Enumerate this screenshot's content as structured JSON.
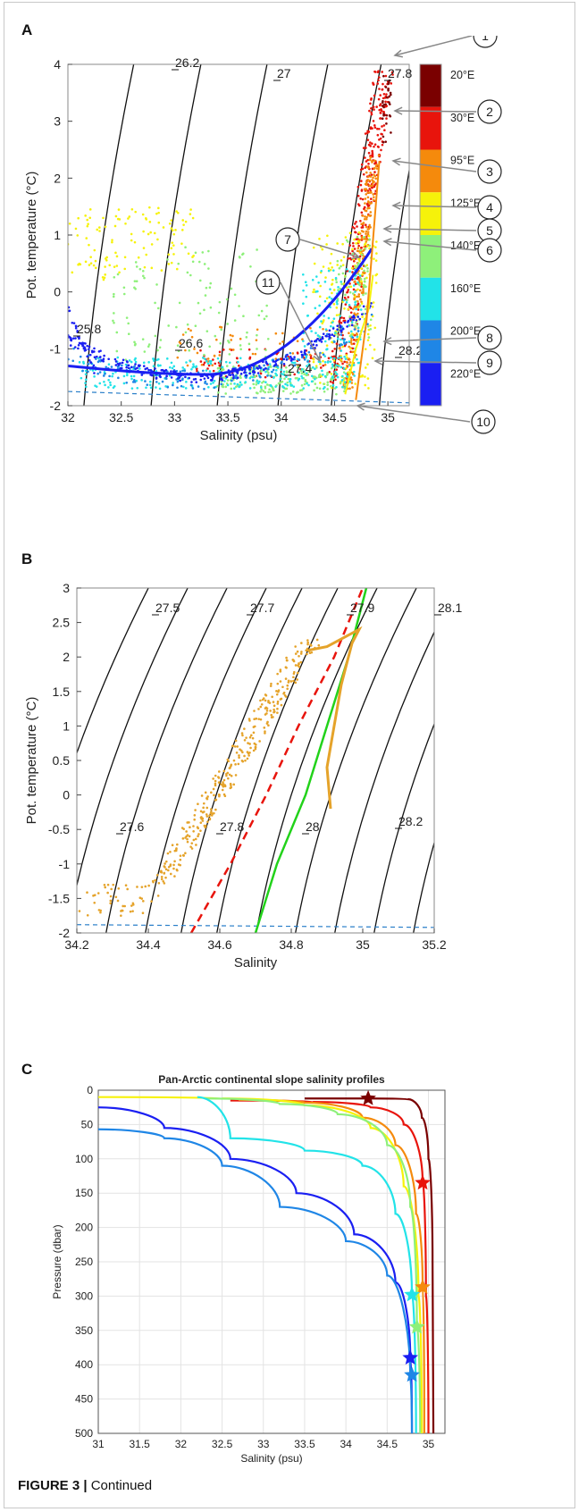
{
  "panelA": {
    "letter": "A",
    "chart_data": {
      "type": "scatter",
      "xlabel": "Salinity (psu)",
      "ylabel": "Pot. temperature (°C)",
      "xlim": [
        32,
        35.2
      ],
      "ylim": [
        -2,
        4
      ],
      "xticks": [
        "32",
        "32.5",
        "33",
        "33.5",
        "34",
        "34.5",
        "35"
      ],
      "yticks": [
        "-2",
        "-1",
        "0",
        "1",
        "2",
        "3",
        "4"
      ],
      "isopycnal_labels": [
        "26.2",
        "27",
        "27.8",
        "25.8",
        "26.6",
        "27.4",
        "28.2"
      ],
      "freezing_line_temp": -1.9,
      "colorbar": [
        {
          "label": "20°E",
          "color": "#7a0000"
        },
        {
          "label": "30°E",
          "color": "#e8140c"
        },
        {
          "label": "95°E",
          "color": "#f58a0c"
        },
        {
          "label": "125°E",
          "color": "#f6f20a"
        },
        {
          "label": "140°E",
          "color": "#8ef07a"
        },
        {
          "label": "160°E",
          "color": "#22e3e8"
        },
        {
          "label": "200°E",
          "color": "#1f86e6"
        },
        {
          "label": "220°E",
          "color": "#1a1ff2"
        }
      ],
      "markers": [
        "1",
        "2",
        "3",
        "4",
        "5",
        "6",
        "7",
        "8",
        "9",
        "10",
        "11"
      ]
    }
  },
  "panelB": {
    "letter": "B",
    "chart_data": {
      "type": "scatter",
      "xlabel": "Salinity",
      "ylabel": "Pot. temperature (°C)",
      "xlim": [
        34.2,
        35.2
      ],
      "ylim": [
        -2,
        3
      ],
      "xticks": [
        "34.2",
        "34.4",
        "34.6",
        "34.8",
        "35",
        "35.2"
      ],
      "yticks": [
        "-2",
        "-1.5",
        "-1",
        "-0.5",
        "0",
        "0.5",
        "1",
        "1.5",
        "2",
        "2.5",
        "3"
      ],
      "isopycnal_labels": [
        "27.5",
        "27.7",
        "27.9",
        "28.1",
        "27.6",
        "27.8",
        "28",
        "28.2"
      ],
      "freezing_line_temp": -1.9,
      "green_line": [
        [
          34.7,
          -2
        ],
        [
          34.76,
          -1
        ],
        [
          34.84,
          0
        ],
        [
          34.9,
          1
        ],
        [
          34.96,
          2
        ],
        [
          35.01,
          3
        ]
      ],
      "red_dashed_line": [
        [
          34.52,
          -2
        ],
        [
          34.63,
          -1
        ],
        [
          34.73,
          0
        ],
        [
          34.82,
          1
        ],
        [
          34.92,
          2
        ],
        [
          35.0,
          3
        ]
      ],
      "orange_profile": [
        [
          34.91,
          -0.2
        ],
        [
          34.9,
          0.4
        ],
        [
          34.92,
          1.0
        ],
        [
          34.94,
          1.6
        ],
        [
          34.97,
          2.2
        ],
        [
          34.99,
          2.4
        ],
        [
          34.9,
          2.15
        ],
        [
          34.85,
          2.1
        ]
      ]
    }
  },
  "panelC": {
    "letter": "C",
    "chart_data": {
      "type": "line",
      "title": "Pan-Arctic continental slope salinity profiles",
      "xlabel": "Salinity (psu)",
      "ylabel": "Pressure (dbar)",
      "xlim": [
        31,
        35.2
      ],
      "ylim": [
        0,
        500
      ],
      "xticks": [
        "31",
        "31.5",
        "32",
        "32.5",
        "33",
        "33.5",
        "34",
        "34.5",
        "35"
      ],
      "yticks": [
        "0",
        "50",
        "100",
        "150",
        "200",
        "250",
        "300",
        "350",
        "400",
        "450",
        "500"
      ],
      "series": [
        {
          "color": "#7a0000",
          "points": [
            [
              33.5,
              12
            ],
            [
              34.27,
              12
            ],
            [
              34.75,
              13
            ],
            [
              34.92,
              40
            ],
            [
              35.0,
              100
            ],
            [
              35.05,
              250
            ],
            [
              35.06,
              500
            ]
          ],
          "star": [
            34.27,
            12
          ]
        },
        {
          "color": "#e8140c",
          "points": [
            [
              32.6,
              15
            ],
            [
              33.6,
              17
            ],
            [
              34.3,
              25
            ],
            [
              34.7,
              50
            ],
            [
              34.93,
              135
            ],
            [
              34.97,
              300
            ],
            [
              35.0,
              500
            ]
          ],
          "star": [
            34.93,
            135
          ]
        },
        {
          "color": "#f58a0c",
          "points": [
            [
              32.7,
              14
            ],
            [
              33.5,
              18
            ],
            [
              34.2,
              40
            ],
            [
              34.6,
              80
            ],
            [
              34.85,
              180
            ],
            [
              34.93,
              287
            ],
            [
              34.95,
              500
            ]
          ],
          "star": [
            34.93,
            287
          ]
        },
        {
          "color": "#f6f20a",
          "points": [
            [
              31.0,
              10
            ],
            [
              32.5,
              12
            ],
            [
              33.5,
              22
            ],
            [
              34.3,
              55
            ],
            [
              34.7,
              140
            ],
            [
              34.88,
              300
            ],
            [
              34.92,
              500
            ]
          ],
          "star": null
        },
        {
          "color": "#8ef07a",
          "points": [
            [
              32.3,
              12
            ],
            [
              33.2,
              20
            ],
            [
              33.9,
              35
            ],
            [
              34.5,
              80
            ],
            [
              34.78,
              170
            ],
            [
              34.86,
              345
            ],
            [
              34.9,
              500
            ]
          ],
          "star": [
            34.86,
            345
          ]
        },
        {
          "color": "#22e3e8",
          "points": [
            [
              32.2,
              10
            ],
            [
              32.6,
              70
            ],
            [
              33.5,
              88
            ],
            [
              34.2,
              110
            ],
            [
              34.6,
              180
            ],
            [
              34.8,
              298
            ],
            [
              34.85,
              500
            ]
          ],
          "star": [
            34.8,
            298
          ]
        },
        {
          "color": "#1a1ff2",
          "points": [
            [
              31.0,
              25
            ],
            [
              31.8,
              55
            ],
            [
              32.6,
              100
            ],
            [
              33.4,
              150
            ],
            [
              34.1,
              210
            ],
            [
              34.6,
              280
            ],
            [
              34.78,
              390
            ],
            [
              34.8,
              500
            ]
          ],
          "star": [
            34.78,
            390
          ]
        },
        {
          "color": "#1f86e6",
          "points": [
            [
              31.0,
              57
            ],
            [
              31.8,
              70
            ],
            [
              32.5,
              110
            ],
            [
              33.2,
              170
            ],
            [
              34.0,
              220
            ],
            [
              34.5,
              270
            ],
            [
              34.78,
              420
            ],
            [
              34.8,
              500
            ]
          ],
          "star": [
            34.8,
            415
          ]
        }
      ]
    }
  },
  "caption": {
    "figure": "FIGURE 3 |",
    "text": "Continued"
  }
}
